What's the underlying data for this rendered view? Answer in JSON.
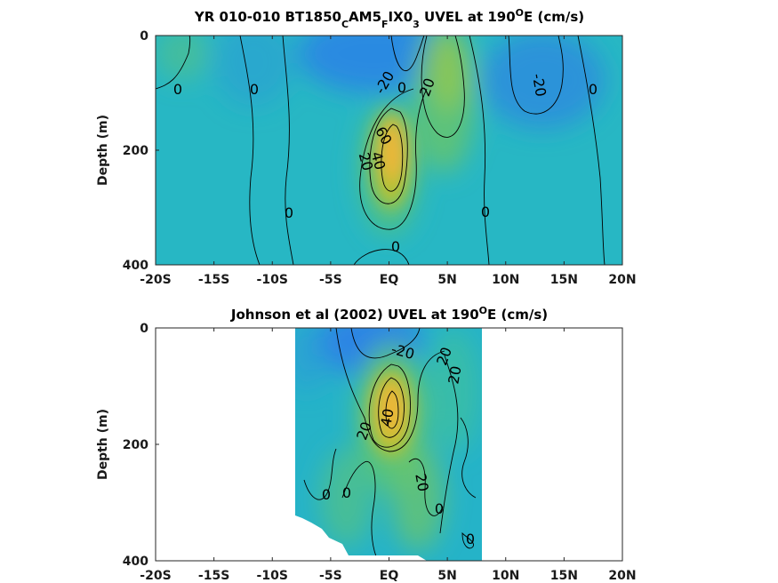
{
  "chart_data": [
    {
      "type": "heatmap",
      "title_parts": [
        {
          "text": "YR 010-010 BT1850",
          "sub": false
        },
        {
          "text": "C",
          "sub": true
        },
        {
          "text": "AM5",
          "sub": false
        },
        {
          "text": "F",
          "sub": true
        },
        {
          "text": "IX0",
          "sub": false
        },
        {
          "text": "3",
          "sub": true
        },
        {
          "text": " UVEL at 190",
          "sub": false
        },
        {
          "text": "O",
          "sup": true
        },
        {
          "text": "E (cm/s)",
          "sub": false
        }
      ],
      "ylabel": "Depth (m)",
      "xlim": [
        -20,
        20
      ],
      "ylim": [
        400,
        0
      ],
      "x_ticks": [
        "-20S",
        "-15S",
        "-10S",
        "-5S",
        "EQ",
        "5N",
        "10N",
        "15N",
        "20N"
      ],
      "x_tick_values": [
        -20,
        -15,
        -10,
        -5,
        0,
        5,
        10,
        15,
        20
      ],
      "y_ticks": [
        "0",
        "200",
        "400"
      ],
      "y_tick_values": [
        0,
        200,
        400
      ],
      "data_extent_x": [
        -20,
        20
      ],
      "grid": false,
      "colormap": "parula",
      "contour_labels": [
        "0",
        "0",
        "-20",
        "0",
        "20",
        "-20",
        "0",
        "60",
        "40",
        "20",
        "0",
        "0",
        "0"
      ],
      "features": [
        {
          "kind": "jet",
          "lat": 0,
          "depth": 180,
          "peak": 75
        },
        {
          "kind": "jet",
          "lat": 5,
          "depth": 80,
          "peak": 30
        },
        {
          "kind": "current",
          "lat": -2,
          "depth": 20,
          "peak": -35
        },
        {
          "kind": "current",
          "lat": 12,
          "depth": 60,
          "peak": -30
        }
      ]
    },
    {
      "type": "heatmap",
      "title_parts": [
        {
          "text": "Johnson et al (2002) UVEL at 190",
          "sub": false
        },
        {
          "text": "O",
          "sup": true
        },
        {
          "text": "E (cm/s)",
          "sub": false
        }
      ],
      "ylabel": "Depth (m)",
      "xlim": [
        -20,
        20
      ],
      "ylim": [
        400,
        0
      ],
      "x_ticks": [
        "-20S",
        "-15S",
        "-10S",
        "-5S",
        "EQ",
        "5N",
        "10N",
        "15N",
        "20N"
      ],
      "x_tick_values": [
        -20,
        -15,
        -10,
        -5,
        0,
        5,
        10,
        15,
        20
      ],
      "y_ticks": [
        "0",
        "200",
        "400"
      ],
      "y_tick_values": [
        0,
        200,
        400
      ],
      "data_extent_x": [
        -8,
        8
      ],
      "grid": false,
      "colormap": "parula",
      "contour_labels": [
        "-20",
        "20",
        "20",
        "40",
        "20",
        "0",
        "0",
        "20",
        "0",
        "0"
      ],
      "features": [
        {
          "kind": "jet",
          "lat": 0.5,
          "depth": 150,
          "peak": 80
        },
        {
          "kind": "current",
          "lat": -1,
          "depth": 20,
          "peak": -35
        },
        {
          "kind": "jet",
          "lat": 3,
          "depth": 300,
          "peak": 25
        },
        {
          "kind": "jet",
          "lat": -3,
          "depth": 300,
          "peak": 20
        }
      ]
    }
  ]
}
